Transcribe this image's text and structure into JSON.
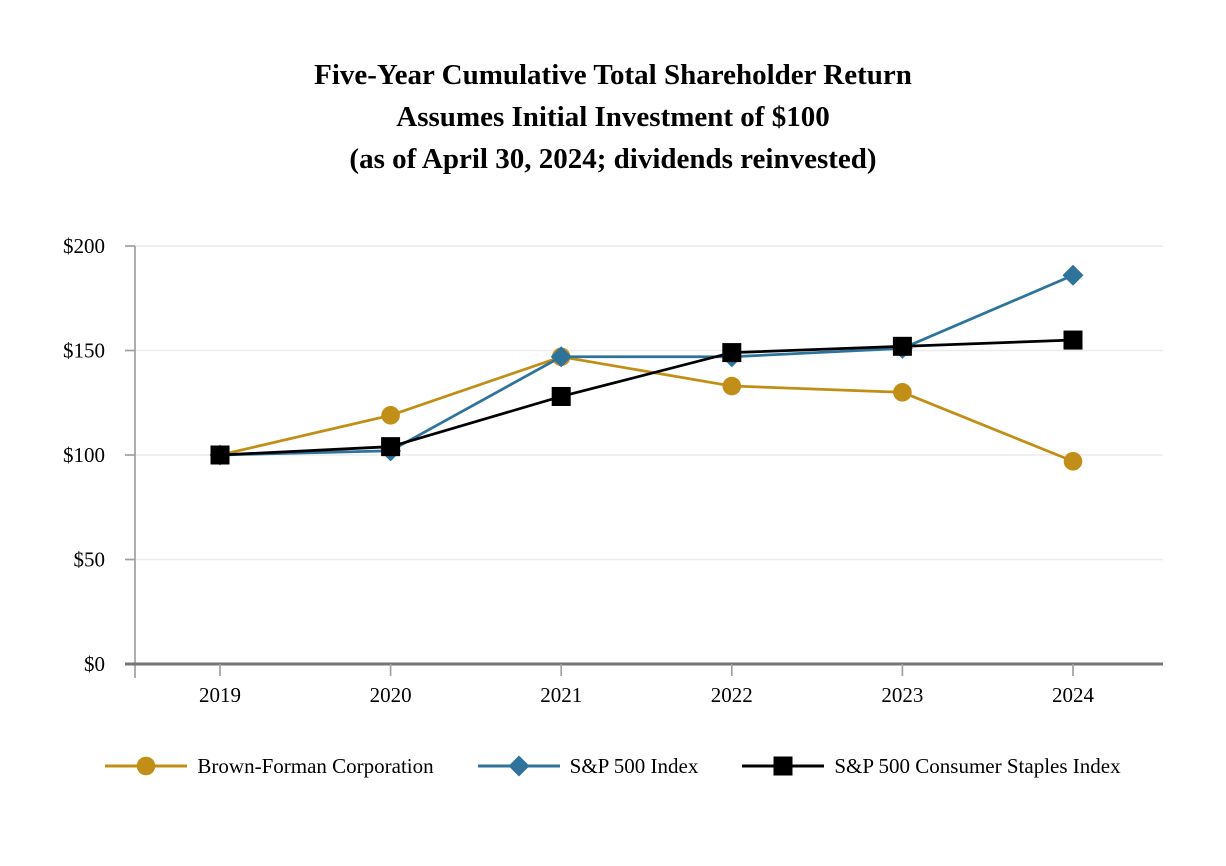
{
  "title": {
    "line1": "Five-Year Cumulative Total Shareholder Return",
    "line2": "Assumes Initial Investment of $100",
    "line3": "(as of April 30, 2024; dividends reinvested)"
  },
  "chart_data": {
    "type": "line",
    "categories": [
      "2019",
      "2020",
      "2021",
      "2022",
      "2023",
      "2024"
    ],
    "series": [
      {
        "name": "Brown-Forman Corporation",
        "color": "#C18F17",
        "marker": "circle",
        "values": [
          100,
          119,
          147,
          133,
          130,
          97
        ]
      },
      {
        "name": "S&P 500 Index",
        "color": "#2D739B",
        "marker": "diamond",
        "values": [
          100,
          102,
          147,
          147,
          151,
          186
        ]
      },
      {
        "name": "S&P 500 Consumer Staples Index",
        "color": "#000000",
        "marker": "square",
        "values": [
          100,
          104,
          128,
          149,
          152,
          155
        ]
      }
    ],
    "y_axis": {
      "min": 0,
      "max": 200,
      "tick_values": [
        0,
        50,
        100,
        150,
        200
      ],
      "tick_labels": [
        "$0",
        "$50",
        "$100",
        "$150",
        "$200"
      ]
    },
    "x_axis": {
      "tick_labels": [
        "2019",
        "2020",
        "2021",
        "2022",
        "2023",
        "2024"
      ]
    },
    "grid": "horizontal",
    "legend_position": "bottom",
    "axis_colors": {
      "grid": "#ECECEC",
      "y_axis": "#A0A0A0",
      "x_axis": "#757575",
      "text": "#000000"
    }
  }
}
